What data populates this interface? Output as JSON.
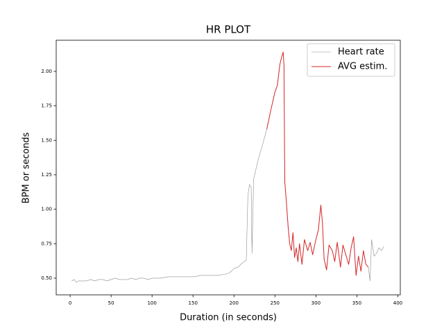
{
  "chart_data": {
    "type": "line",
    "title": "HR PLOT",
    "x_label": "Duration (in seconds)",
    "y_label": "BPM or seconds",
    "x": [
      2,
      5,
      8,
      10,
      15,
      20,
      25,
      30,
      35,
      40,
      45,
      50,
      55,
      60,
      65,
      70,
      75,
      80,
      85,
      90,
      95,
      100,
      110,
      120,
      130,
      140,
      150,
      160,
      170,
      180,
      190,
      195,
      200,
      205,
      210,
      215,
      217,
      219,
      221,
      222,
      224,
      226,
      230,
      235,
      240,
      245,
      250,
      253,
      256,
      258,
      260,
      261,
      262,
      264,
      266,
      268,
      270,
      272,
      274,
      276,
      278,
      280,
      283,
      286,
      290,
      293,
      296,
      300,
      303,
      306,
      308,
      310,
      313,
      316,
      320,
      323,
      326,
      330,
      333,
      336,
      340,
      343,
      346,
      349,
      352,
      355,
      358,
      361,
      364,
      366,
      368,
      371,
      374,
      377,
      380,
      383
    ],
    "series": [
      {
        "name": "Heart rate",
        "color": "#8c8c8c",
        "width": 0.6,
        "values": [
          0.48,
          0.49,
          0.47,
          0.48,
          0.48,
          0.48,
          0.49,
          0.48,
          0.49,
          0.49,
          0.48,
          0.49,
          0.5,
          0.49,
          0.49,
          0.49,
          0.5,
          0.49,
          0.5,
          0.5,
          0.49,
          0.5,
          0.5,
          0.51,
          0.51,
          0.51,
          0.51,
          0.52,
          0.52,
          0.52,
          0.53,
          0.54,
          0.57,
          0.58,
          0.61,
          0.63,
          1.1,
          1.18,
          1.16,
          0.68,
          1.22,
          1.27,
          1.37,
          1.47,
          1.58,
          1.72,
          1.85,
          1.9,
          2.05,
          2.1,
          2.14,
          2.05,
          1.2,
          1.05,
          0.88,
          0.75,
          0.7,
          0.83,
          0.65,
          0.72,
          0.62,
          0.75,
          0.6,
          0.78,
          0.7,
          0.76,
          0.67,
          0.78,
          0.85,
          1.03,
          0.9,
          0.64,
          0.56,
          0.74,
          0.7,
          0.62,
          0.76,
          0.58,
          0.74,
          0.68,
          0.6,
          0.72,
          0.8,
          0.52,
          0.66,
          0.55,
          0.7,
          0.6,
          0.58,
          0.48,
          0.78,
          0.66,
          0.68,
          0.72,
          0.7,
          0.73
        ]
      },
      {
        "name": "AVG estim.",
        "color": "#d62728",
        "width": 1,
        "values": [
          null,
          null,
          null,
          null,
          null,
          null,
          null,
          null,
          null,
          null,
          null,
          null,
          null,
          null,
          null,
          null,
          null,
          null,
          null,
          null,
          null,
          null,
          null,
          null,
          null,
          null,
          null,
          null,
          null,
          null,
          null,
          null,
          null,
          null,
          null,
          null,
          null,
          null,
          null,
          null,
          null,
          null,
          null,
          null,
          1.58,
          1.72,
          1.85,
          1.9,
          2.05,
          2.1,
          2.14,
          2.05,
          1.2,
          1.05,
          0.88,
          0.75,
          0.7,
          0.83,
          0.65,
          0.72,
          0.62,
          0.75,
          0.6,
          0.78,
          0.7,
          0.76,
          0.67,
          0.78,
          0.85,
          1.03,
          0.9,
          0.64,
          0.56,
          0.74,
          0.7,
          0.62,
          0.76,
          0.58,
          0.74,
          0.68,
          0.6,
          0.72,
          0.8,
          0.52,
          0.66,
          0.55,
          0.7,
          0.6,
          0.58,
          null,
          null,
          null,
          null,
          null,
          null,
          null
        ]
      }
    ],
    "xlim": [
      -17,
      403
    ],
    "ylim": [
      0.379,
      2.226
    ],
    "xticks": [
      0,
      50,
      100,
      150,
      200,
      250,
      300,
      350,
      400
    ],
    "yticks": [
      {
        "value": 0.5,
        "label": "0.50"
      },
      {
        "value": 0.75,
        "label": "0.75"
      },
      {
        "value": 1.0,
        "label": "1.00"
      },
      {
        "value": 1.25,
        "label": "1.25"
      },
      {
        "value": 1.5,
        "label": "1.50"
      },
      {
        "value": 1.75,
        "label": "1.75"
      },
      {
        "value": 2.0,
        "label": "2.00"
      }
    ],
    "legend": "upper right"
  }
}
